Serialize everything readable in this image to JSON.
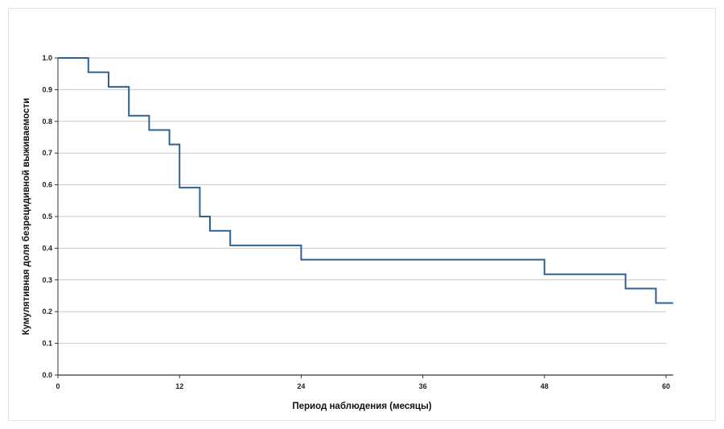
{
  "chart_data": {
    "type": "line",
    "step": "post",
    "xlabel": "Период наблюдения (месяцы)",
    "ylabel": "Кумулятивная доля безрецидивной выживаемости",
    "xlim": [
      0,
      60
    ],
    "ylim": [
      0,
      1.0
    ],
    "xticks": [
      0,
      12,
      24,
      36,
      48,
      60
    ],
    "yticks": [
      0.0,
      0.1,
      0.2,
      0.3,
      0.4,
      0.5,
      0.6,
      0.7,
      0.8,
      0.9,
      1.0
    ],
    "ytick_labels": [
      "0.0",
      "0.1",
      "0.2",
      "0.3",
      "0.4",
      "0.5",
      "0.6",
      "0.7",
      "0.8",
      "0.9",
      "1.0"
    ],
    "xtick_labels": [
      "0",
      "12",
      "24",
      "36",
      "48",
      "60"
    ],
    "grid": "horizontal",
    "line_color": "#2f6191",
    "series": [
      {
        "x": [
          0,
          3,
          5,
          7,
          9,
          11,
          12,
          14,
          15,
          17,
          24,
          48,
          56,
          59,
          60.7
        ],
        "y": [
          1.0,
          0.955,
          0.909,
          0.818,
          0.773,
          0.727,
          0.591,
          0.5,
          0.455,
          0.409,
          0.364,
          0.318,
          0.273,
          0.227,
          0.227
        ]
      }
    ]
  }
}
